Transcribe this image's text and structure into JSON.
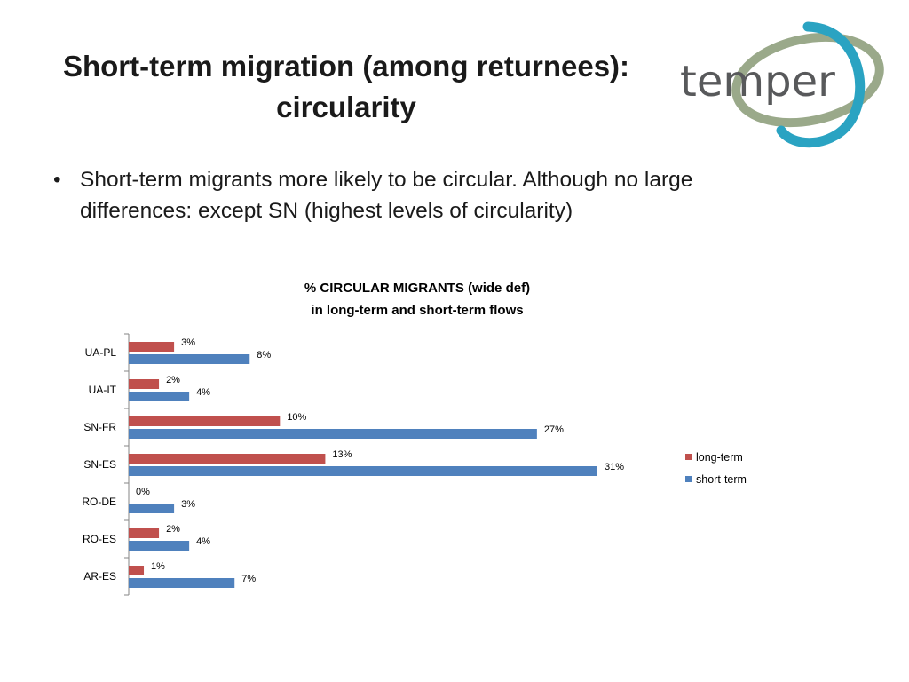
{
  "slide": {
    "title_line1": "Short-term migration (among returnees):",
    "title_line2": "circularity",
    "bullet_char": "•",
    "bullet_text": "Short-term migrants more likely to be circular. Although no large differences: except SN (highest levels of circularity)",
    "logo_text": "temper"
  },
  "colors": {
    "long_term": "#c0504d",
    "short_term": "#4f81bd",
    "logo_text": "#58595b",
    "logo_ring_green": "#9aa98a",
    "logo_ring_blue": "#2aa3c2"
  },
  "chart_data": {
    "type": "bar",
    "orientation": "horizontal",
    "title_line1": "% CIRCULAR MIGRANTS (wide def)",
    "title_line2": "in long-term and short-term flows",
    "categories": [
      "UA-PL",
      "UA-IT",
      "SN-FR",
      "SN-ES",
      "RO-DE",
      "RO-ES",
      "AR-ES"
    ],
    "series": [
      {
        "name": "long-term",
        "values": [
          3,
          2,
          10,
          13,
          0,
          2,
          1
        ],
        "labels": [
          "3%",
          "2%",
          "10%",
          "13%",
          "0%",
          "2%",
          "1%"
        ]
      },
      {
        "name": "short-term",
        "values": [
          8,
          4,
          27,
          31,
          3,
          4,
          7
        ],
        "labels": [
          "8%",
          "4%",
          "27%",
          "31%",
          "3%",
          "4%",
          "7%"
        ]
      }
    ],
    "xlim": [
      0,
      31
    ],
    "grid": false,
    "legend_position": "right"
  }
}
